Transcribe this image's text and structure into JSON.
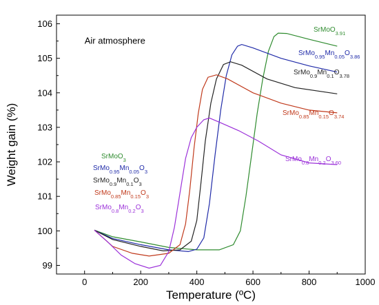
{
  "chart_data": {
    "type": "line",
    "title": "",
    "xlabel": "Temperature (ºC)",
    "ylabel": "Weight gain (%)",
    "xlim": [
      -100,
      1000
    ],
    "ylim": [
      98.75,
      106.25
    ],
    "xticks": [
      0,
      200,
      400,
      600,
      800,
      1000
    ],
    "yticks": [
      99,
      100,
      101,
      102,
      103,
      104,
      105,
      106
    ],
    "annotation": "Air atmosphere",
    "grid": false,
    "legend_position": "center-left",
    "legend": [
      {
        "series": "SrMoO3",
        "base": "SrMoO",
        "sub": "3",
        "color": "#2e8b2e"
      },
      {
        "series": "SrMo0.95Mn0.05O3",
        "base": "SrMo",
        "sub1": "0.95",
        "mid": "Mn",
        "sub2": "0.05",
        "tail": "O",
        "sub3": "3",
        "color": "#1f2aa8"
      },
      {
        "series": "SrMo0.9Mn0.1O3",
        "base": "SrMo",
        "sub1": "0.9",
        "mid": "Mn",
        "sub2": "0.1",
        "tail": "O",
        "sub3": "3",
        "color": "#222222"
      },
      {
        "series": "SrMo0.85Mn0.15O3",
        "base": "SrMo",
        "sub1": "0.85",
        "mid": "Mn",
        "sub2": "0.15",
        "tail": "O",
        "sub3": "3",
        "color": "#c0391b"
      },
      {
        "series": "SrMo0.8Mn0.2O3",
        "base": "SrMo",
        "sub1": "0.8",
        "mid": "Mn",
        "sub2": "0.2",
        "tail": "O",
        "sub3": "3",
        "color": "#9b30d9"
      }
    ],
    "end_labels": [
      {
        "series": "SrMoO3",
        "base": "SrMoO",
        "sub": "3.91",
        "color": "#2e8b2e"
      },
      {
        "series": "SrMo0.95Mn0.05O3",
        "base": "SrMo",
        "sub1": "0.95",
        "mid": "Mn",
        "sub2": "0.05",
        "tail": "O",
        "sub3": "3.86",
        "color": "#1f2aa8"
      },
      {
        "series": "SrMo0.9Mn0.1O3",
        "base": "SrMo",
        "sub1": "0.9",
        "mid": "Mn",
        "sub2": "0.1",
        "tail": "O",
        "sub3": "3.78",
        "color": "#222222"
      },
      {
        "series": "SrMo0.85Mn0.15O3",
        "base": "SrMo",
        "sub1": "0.85",
        "mid": "Mn",
        "sub2": "0.15",
        "tail": "O",
        "sub3": "3.74",
        "color": "#c0391b"
      },
      {
        "series": "SrMo0.8Mn0.2O3",
        "base": "SrMo",
        "sub1": "0.8",
        "mid": "Mn",
        "sub2": "0.2",
        "tail": "O",
        "sub3": "3.60",
        "color": "#9b30d9"
      }
    ],
    "series": [
      {
        "name": "SrMoO3",
        "color": "#2e8b2e",
        "points": [
          [
            35,
            100.02
          ],
          [
            100,
            99.83
          ],
          [
            200,
            99.68
          ],
          [
            300,
            99.52
          ],
          [
            400,
            99.45
          ],
          [
            480,
            99.45
          ],
          [
            530,
            99.6
          ],
          [
            555,
            100.0
          ],
          [
            575,
            101.0
          ],
          [
            595,
            102.2
          ],
          [
            615,
            103.4
          ],
          [
            635,
            104.4
          ],
          [
            655,
            105.2
          ],
          [
            675,
            105.63
          ],
          [
            690,
            105.73
          ],
          [
            720,
            105.72
          ],
          [
            800,
            105.55
          ],
          [
            900,
            105.35
          ]
        ]
      },
      {
        "name": "SrMo0.95Mn0.05O3",
        "color": "#1f2aa8",
        "points": [
          [
            35,
            100.02
          ],
          [
            100,
            99.78
          ],
          [
            200,
            99.6
          ],
          [
            300,
            99.45
          ],
          [
            370,
            99.4
          ],
          [
            400,
            99.47
          ],
          [
            425,
            99.8
          ],
          [
            445,
            100.8
          ],
          [
            465,
            102.2
          ],
          [
            485,
            103.5
          ],
          [
            505,
            104.5
          ],
          [
            525,
            105.1
          ],
          [
            545,
            105.35
          ],
          [
            560,
            105.4
          ],
          [
            600,
            105.3
          ],
          [
            700,
            105.0
          ],
          [
            800,
            104.78
          ],
          [
            900,
            104.6
          ]
        ]
      },
      {
        "name": "SrMo0.9Mn0.1O3",
        "color": "#222222",
        "points": [
          [
            35,
            100.02
          ],
          [
            100,
            99.75
          ],
          [
            200,
            99.55
          ],
          [
            280,
            99.42
          ],
          [
            340,
            99.45
          ],
          [
            380,
            99.7
          ],
          [
            400,
            100.3
          ],
          [
            415,
            101.4
          ],
          [
            430,
            102.6
          ],
          [
            450,
            103.7
          ],
          [
            470,
            104.4
          ],
          [
            495,
            104.82
          ],
          [
            520,
            104.9
          ],
          [
            560,
            104.8
          ],
          [
            650,
            104.4
          ],
          [
            750,
            104.15
          ],
          [
            900,
            103.97
          ]
        ]
      },
      {
        "name": "SrMo0.85Mn0.15O3",
        "color": "#c0391b",
        "points": [
          [
            35,
            100.02
          ],
          [
            100,
            99.55
          ],
          [
            170,
            99.35
          ],
          [
            230,
            99.27
          ],
          [
            300,
            99.35
          ],
          [
            340,
            99.6
          ],
          [
            360,
            100.2
          ],
          [
            375,
            101.2
          ],
          [
            390,
            102.4
          ],
          [
            405,
            103.4
          ],
          [
            420,
            104.1
          ],
          [
            440,
            104.45
          ],
          [
            470,
            104.52
          ],
          [
            510,
            104.4
          ],
          [
            600,
            104.0
          ],
          [
            700,
            103.7
          ],
          [
            800,
            103.5
          ],
          [
            900,
            103.42
          ]
        ]
      },
      {
        "name": "SrMo0.8Mn0.2O3",
        "color": "#9b30d9",
        "points": [
          [
            35,
            100.02
          ],
          [
            80,
            99.7
          ],
          [
            130,
            99.3
          ],
          [
            180,
            99.05
          ],
          [
            230,
            98.92
          ],
          [
            270,
            99.0
          ],
          [
            300,
            99.4
          ],
          [
            320,
            100.1
          ],
          [
            340,
            101.1
          ],
          [
            360,
            102.1
          ],
          [
            380,
            102.7
          ],
          [
            400,
            103.0
          ],
          [
            425,
            103.22
          ],
          [
            445,
            103.27
          ],
          [
            480,
            103.15
          ],
          [
            550,
            102.9
          ],
          [
            620,
            102.6
          ],
          [
            700,
            102.2
          ],
          [
            800,
            101.97
          ],
          [
            900,
            101.92
          ]
        ]
      }
    ]
  }
}
